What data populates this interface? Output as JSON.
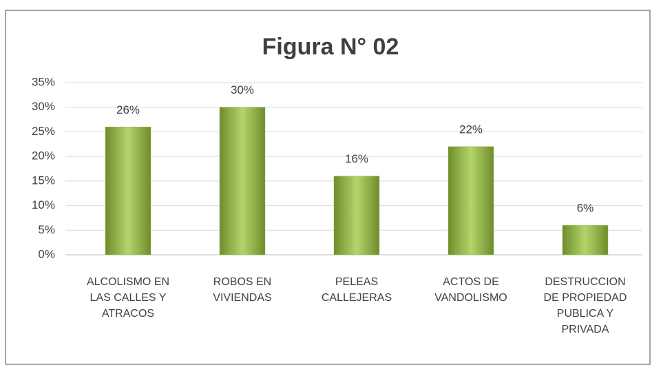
{
  "chart_data": {
    "type": "bar",
    "title": "Figura N° 02",
    "categories": [
      "ALCOLISMO EN\nLAS CALLES  Y\nATRACOS",
      "ROBOS EN\nVIVIENDAS",
      "PELEAS\nCALLEJERAS",
      "ACTOS DE\nVANDOLISMO",
      "DESTRUCCION\nDE PROPIEDAD\nPUBLICA Y\nPRIVADA"
    ],
    "values": [
      26,
      30,
      16,
      22,
      6
    ],
    "value_labels": [
      "26%",
      "30%",
      "16%",
      "22%",
      "6%"
    ],
    "color": "#9bbb59",
    "ylim": [
      0,
      35
    ],
    "yticks": [
      {
        "value": 0,
        "label": "0%"
      },
      {
        "value": 5,
        "label": "5%"
      },
      {
        "value": 10,
        "label": "10%"
      },
      {
        "value": 15,
        "label": "15%"
      },
      {
        "value": 20,
        "label": "20%"
      },
      {
        "value": 25,
        "label": "25%"
      },
      {
        "value": 30,
        "label": "30%"
      },
      {
        "value": 35,
        "label": "35%"
      }
    ],
    "grid": true
  }
}
